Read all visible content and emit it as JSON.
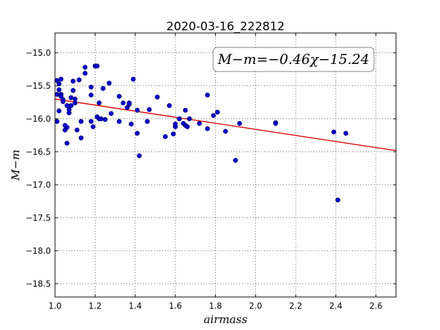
{
  "chart_data": {
    "type": "scatter",
    "title": "2020-03-16_222812",
    "xlabel": "airmass",
    "ylabel": "M−m",
    "xlim": [
      1.0,
      2.7
    ],
    "ylim": [
      -18.7,
      -14.7
    ],
    "y_inverted": true,
    "grid": true,
    "x_ticks": [
      1.0,
      1.2,
      1.4,
      1.6,
      1.8,
      2.0,
      2.2,
      2.4,
      2.6
    ],
    "x_tick_labels": [
      "1.0",
      "1.2",
      "1.4",
      "1.6",
      "1.8",
      "2.0",
      "2.2",
      "2.4",
      "2.6"
    ],
    "y_ticks": [
      -15.0,
      -15.5,
      -16.0,
      -16.5,
      -17.0,
      -17.5,
      -18.0,
      -18.5
    ],
    "y_tick_labels": [
      "−15.0",
      "−15.5",
      "−16.0",
      "−16.5",
      "−17.0",
      "−17.5",
      "−18.0",
      "−18.5"
    ],
    "fit": {
      "label": "M−m=−0.46χ−15.24",
      "slope": -0.46,
      "intercept": -15.24,
      "color": "#dd0000",
      "label_position": "top-right"
    },
    "marker_color": "#0000cc",
    "points": [
      [
        1.01,
        -15.42
      ],
      [
        1.01,
        -15.63
      ],
      [
        1.01,
        -16.04
      ],
      [
        1.02,
        -15.47
      ],
      [
        1.02,
        -15.56
      ],
      [
        1.02,
        -15.88
      ],
      [
        1.03,
        -15.4
      ],
      [
        1.03,
        -15.63
      ],
      [
        1.03,
        -15.66
      ],
      [
        1.04,
        -15.71
      ],
      [
        1.04,
        -15.74
      ],
      [
        1.05,
        -16.1
      ],
      [
        1.05,
        -16.17
      ],
      [
        1.06,
        -16.13
      ],
      [
        1.06,
        -16.37
      ],
      [
        1.06,
        -15.8
      ],
      [
        1.07,
        -15.86
      ],
      [
        1.07,
        -15.91
      ],
      [
        1.08,
        -15.8
      ],
      [
        1.08,
        -15.68
      ],
      [
        1.09,
        -15.43
      ],
      [
        1.09,
        -15.57
      ],
      [
        1.1,
        -15.76
      ],
      [
        1.1,
        -15.7
      ],
      [
        1.11,
        -16.17
      ],
      [
        1.12,
        -15.41
      ],
      [
        1.13,
        -16.04
      ],
      [
        1.13,
        -16.29
      ],
      [
        1.15,
        -15.22
      ],
      [
        1.15,
        -15.31
      ],
      [
        1.18,
        -15.52
      ],
      [
        1.18,
        -15.64
      ],
      [
        1.18,
        -16.04
      ],
      [
        1.19,
        -16.12
      ],
      [
        1.2,
        -15.2
      ],
      [
        1.21,
        -15.2
      ],
      [
        1.21,
        -15.97
      ],
      [
        1.22,
        -16.0
      ],
      [
        1.22,
        -15.76
      ],
      [
        1.23,
        -16.0
      ],
      [
        1.24,
        -15.54
      ],
      [
        1.25,
        -16.01
      ],
      [
        1.27,
        -15.46
      ],
      [
        1.28,
        -15.92
      ],
      [
        1.32,
        -15.66
      ],
      [
        1.32,
        -16.04
      ],
      [
        1.34,
        -15.76
      ],
      [
        1.36,
        -15.83
      ],
      [
        1.37,
        -15.78
      ],
      [
        1.37,
        -15.76
      ],
      [
        1.38,
        -16.08
      ],
      [
        1.39,
        -15.4
      ],
      [
        1.41,
        -16.22
      ],
      [
        1.41,
        -15.87
      ],
      [
        1.42,
        -16.56
      ],
      [
        1.46,
        -16.04
      ],
      [
        1.47,
        -15.86
      ],
      [
        1.51,
        -15.67
      ],
      [
        1.55,
        -16.27
      ],
      [
        1.57,
        -15.8
      ],
      [
        1.59,
        -16.23
      ],
      [
        1.6,
        -16.12
      ],
      [
        1.6,
        -16.08
      ],
      [
        1.62,
        -16.0
      ],
      [
        1.64,
        -16.07
      ],
      [
        1.65,
        -16.1
      ],
      [
        1.65,
        -15.87
      ],
      [
        1.66,
        -16.12
      ],
      [
        1.67,
        -16.0
      ],
      [
        1.72,
        -16.07
      ],
      [
        1.76,
        -15.64
      ],
      [
        1.76,
        -16.15
      ],
      [
        1.79,
        -15.95
      ],
      [
        1.81,
        -15.9
      ],
      [
        1.85,
        -16.19
      ],
      [
        1.9,
        -16.63
      ],
      [
        1.92,
        -16.07
      ],
      [
        2.1,
        -16.06
      ],
      [
        2.1,
        -16.07
      ],
      [
        2.39,
        -16.2
      ],
      [
        2.41,
        -17.23
      ],
      [
        2.45,
        -16.22
      ]
    ]
  }
}
